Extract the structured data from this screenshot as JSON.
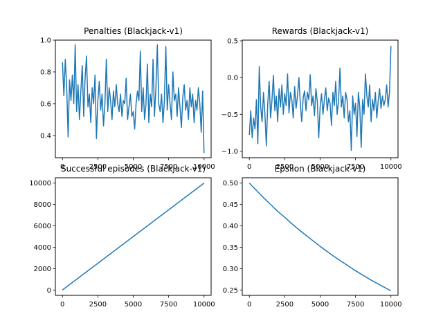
{
  "chart_data": [
    {
      "type": "line",
      "title": "Penalties (Blackjack-v1)",
      "xlim": [
        -500,
        10500
      ],
      "ylim": [
        0.26,
        1.0
      ],
      "xticks": [
        0,
        2500,
        5000,
        7500,
        10000
      ],
      "yticks": [
        0.4,
        0.6,
        0.8,
        1.0
      ],
      "xtick_labels": [
        "0",
        "2500",
        "5000",
        "7500",
        "10000"
      ],
      "ytick_labels": [
        "0.4",
        "0.6",
        "0.8",
        "1.0"
      ],
      "series": [
        {
          "color": "#1f77b4",
          "x": [
            0,
            100,
            200,
            300,
            400,
            500,
            600,
            700,
            800,
            900,
            1000,
            1100,
            1200,
            1300,
            1400,
            1500,
            1600,
            1700,
            1800,
            1900,
            2000,
            2100,
            2200,
            2300,
            2400,
            2500,
            2600,
            2700,
            2800,
            2900,
            3000,
            3100,
            3200,
            3300,
            3400,
            3500,
            3600,
            3700,
            3800,
            3900,
            4000,
            4100,
            4200,
            4300,
            4400,
            4500,
            4600,
            4700,
            4800,
            4900,
            5000,
            5100,
            5200,
            5300,
            5400,
            5500,
            5600,
            5700,
            5800,
            5900,
            6000,
            6100,
            6200,
            6300,
            6400,
            6500,
            6600,
            6700,
            6800,
            6900,
            7000,
            7100,
            7200,
            7300,
            7400,
            7500,
            7600,
            7700,
            7800,
            7900,
            8000,
            8100,
            8200,
            8300,
            8400,
            8500,
            8600,
            8700,
            8800,
            8900,
            9000,
            9100,
            9200,
            9300,
            9400,
            9500,
            9600,
            9700,
            9800,
            9900,
            10000
          ],
          "y": [
            0.86,
            0.65,
            0.88,
            0.7,
            0.39,
            0.75,
            0.62,
            0.78,
            0.6,
            0.97,
            0.55,
            0.72,
            0.5,
            0.68,
            0.84,
            0.52,
            0.76,
            0.9,
            0.58,
            0.66,
            0.48,
            0.7,
            0.6,
            0.78,
            0.38,
            0.62,
            0.74,
            0.56,
            0.66,
            0.46,
            0.6,
            0.88,
            0.55,
            0.7,
            0.62,
            0.5,
            0.68,
            0.58,
            0.72,
            0.6,
            0.55,
            0.66,
            0.52,
            0.62,
            0.6,
            0.76,
            0.5,
            0.58,
            0.66,
            0.52,
            0.55,
            0.44,
            0.6,
            0.68,
            0.62,
            0.93,
            0.55,
            0.7,
            0.5,
            0.6,
            0.85,
            0.48,
            0.66,
            0.58,
            0.88,
            0.52,
            0.7,
            0.97,
            0.6,
            0.55,
            0.66,
            0.48,
            0.62,
            0.96,
            0.56,
            0.72,
            0.6,
            0.5,
            0.8,
            0.62,
            0.66,
            0.52,
            0.7,
            0.58,
            0.45,
            0.64,
            0.72,
            0.56,
            0.62,
            0.5,
            0.7,
            0.58,
            0.66,
            0.48,
            0.62,
            0.56,
            0.7,
            0.6,
            0.42,
            0.68,
            0.29
          ]
        }
      ]
    },
    {
      "type": "line",
      "title": "Rewards (Blackjack-v1)",
      "xlim": [
        -500,
        10500
      ],
      "ylim": [
        -1.09,
        0.51
      ],
      "xticks": [
        0,
        2500,
        5000,
        7500,
        10000
      ],
      "yticks": [
        -1.0,
        -0.5,
        0.0,
        0.5
      ],
      "xtick_labels": [
        "0",
        "2500",
        "5000",
        "7500",
        "10000"
      ],
      "ytick_labels": [
        "−1.0",
        "−0.5",
        "0.0",
        "0.5"
      ],
      "series": [
        {
          "color": "#1f77b4",
          "x": [
            0,
            100,
            200,
            300,
            400,
            500,
            600,
            700,
            800,
            900,
            1000,
            1100,
            1200,
            1300,
            1400,
            1500,
            1600,
            1700,
            1800,
            1900,
            2000,
            2100,
            2200,
            2300,
            2400,
            2500,
            2600,
            2700,
            2800,
            2900,
            3000,
            3100,
            3200,
            3300,
            3400,
            3500,
            3600,
            3700,
            3800,
            3900,
            4000,
            4100,
            4200,
            4300,
            4400,
            4500,
            4600,
            4700,
            4800,
            4900,
            5000,
            5100,
            5200,
            5300,
            5400,
            5500,
            5600,
            5700,
            5800,
            5900,
            6000,
            6100,
            6200,
            6300,
            6400,
            6500,
            6600,
            6700,
            6800,
            6900,
            7000,
            7100,
            7200,
            7300,
            7400,
            7500,
            7600,
            7700,
            7800,
            7900,
            8000,
            8100,
            8200,
            8300,
            8400,
            8500,
            8600,
            8700,
            8800,
            8900,
            9000,
            9100,
            9200,
            9300,
            9400,
            9500,
            9600,
            9700,
            9800,
            9900,
            10000
          ],
          "y": [
            -0.78,
            -0.45,
            -0.82,
            -0.55,
            -0.7,
            -0.3,
            -0.9,
            0.15,
            -0.4,
            -0.6,
            -0.2,
            -0.5,
            -0.93,
            -0.35,
            -0.05,
            -0.55,
            -0.3,
            0.03,
            -0.45,
            -0.25,
            -0.6,
            -0.15,
            -0.4,
            -0.1,
            -0.5,
            -0.22,
            -0.38,
            0.05,
            -0.48,
            -0.2,
            -0.3,
            -0.55,
            -0.12,
            -0.42,
            -0.25,
            0.0,
            -0.35,
            -0.6,
            -0.28,
            -0.18,
            -0.45,
            -0.2,
            -0.3,
            0.04,
            -0.38,
            -0.25,
            -0.52,
            -0.15,
            -0.32,
            -0.82,
            -0.4,
            -0.22,
            -0.5,
            -0.3,
            -0.14,
            -0.45,
            -0.28,
            -0.35,
            -0.65,
            -0.2,
            -0.38,
            -0.05,
            -0.5,
            -0.32,
            0.13,
            -0.4,
            -0.25,
            -0.55,
            -0.2,
            -0.3,
            -0.6,
            -0.45,
            -0.99,
            -0.25,
            -0.5,
            -0.35,
            -0.8,
            -0.2,
            -0.4,
            -0.95,
            -0.3,
            -0.5,
            0.05,
            -0.25,
            -0.4,
            -0.1,
            -0.6,
            -0.3,
            -0.45,
            -0.2,
            -0.55,
            -0.32,
            -0.15,
            -0.42,
            -0.25,
            -0.38,
            -0.3,
            -0.1,
            -0.4,
            -0.2,
            0.43
          ]
        }
      ]
    },
    {
      "type": "line",
      "title": "Successful episodes (Blackjack-v1)",
      "xlim": [
        -500,
        10500
      ],
      "ylim": [
        -500,
        10500
      ],
      "xticks": [
        0,
        2500,
        5000,
        7500,
        10000
      ],
      "yticks": [
        0,
        2000,
        4000,
        6000,
        8000,
        10000
      ],
      "xtick_labels": [
        "0",
        "2500",
        "5000",
        "7500",
        "10000"
      ],
      "ytick_labels": [
        "0",
        "2000",
        "4000",
        "6000",
        "8000",
        "10000"
      ],
      "series": [
        {
          "color": "#1f77b4",
          "x": [
            0,
            10000
          ],
          "y": [
            0,
            10000
          ]
        }
      ]
    },
    {
      "type": "line",
      "title": "Epsilon (Blackjack-v1)",
      "xlim": [
        -500,
        10500
      ],
      "ylim": [
        0.2375,
        0.5125
      ],
      "xticks": [
        0,
        2500,
        5000,
        7500,
        10000
      ],
      "yticks": [
        0.25,
        0.3,
        0.35,
        0.4,
        0.45,
        0.5
      ],
      "xtick_labels": [
        "0",
        "2500",
        "5000",
        "7500",
        "10000"
      ],
      "ytick_labels": [
        "0.25",
        "0.30",
        "0.35",
        "0.40",
        "0.45",
        "0.50"
      ],
      "series": [
        {
          "color": "#1f77b4",
          "x": [
            0,
            500,
            1000,
            1500,
            2000,
            2500,
            3000,
            3500,
            4000,
            4500,
            5000,
            5500,
            6000,
            6500,
            7000,
            7500,
            8000,
            8500,
            9000,
            9500,
            10000
          ],
          "y": [
            0.5,
            0.483,
            0.466,
            0.45,
            0.434,
            0.42,
            0.405,
            0.391,
            0.378,
            0.365,
            0.352,
            0.34,
            0.328,
            0.317,
            0.306,
            0.295,
            0.285,
            0.275,
            0.266,
            0.257,
            0.248
          ]
        }
      ]
    }
  ]
}
